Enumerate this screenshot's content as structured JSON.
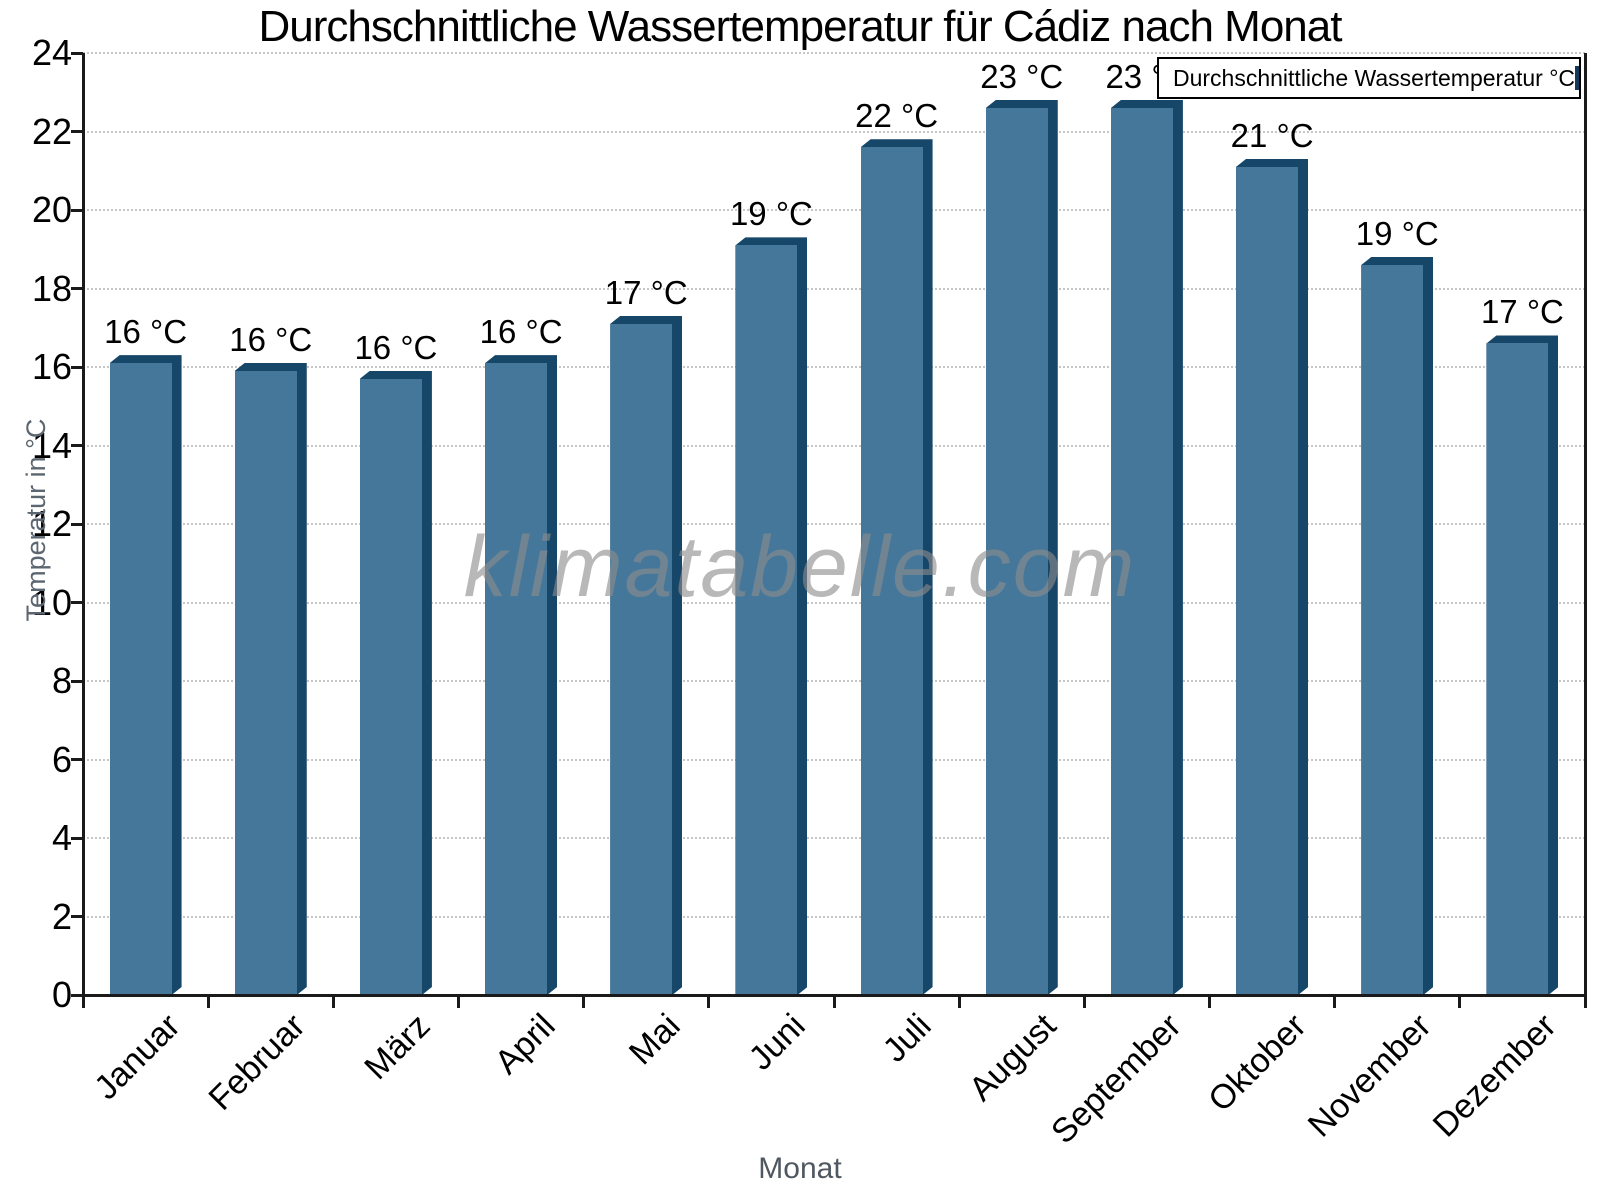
{
  "watermark": "klimatabelle.com",
  "chart_data": {
    "type": "bar",
    "title": "Durchschnittliche Wassertemperatur für Cádiz nach Monat",
    "xlabel": "Monat",
    "ylabel": "Temperatur in °C",
    "categories": [
      "Januar",
      "Februar",
      "März",
      "April",
      "Mai",
      "Juni",
      "Juli",
      "August",
      "September",
      "Oktober",
      "November",
      "Dezember"
    ],
    "values": [
      16.1,
      15.9,
      15.7,
      16.1,
      17.1,
      19.1,
      21.6,
      22.6,
      22.6,
      21.1,
      18.6,
      16.6
    ],
    "bar_labels": [
      "16 °C",
      "16 °C",
      "16 °C",
      "16 °C",
      "17 °C",
      "19 °C",
      "22 °C",
      "23 °C",
      "23 °C",
      "21 °C",
      "19 °C",
      "17 °C"
    ],
    "ylim": [
      0,
      24
    ],
    "ytick_step": 2,
    "grid": true,
    "legend": {
      "label": "Durchschnittliche Wassertemperatur °C",
      "position": "top-right"
    },
    "colors": {
      "bar_face": "#45779B",
      "bar_edge": "#164668",
      "grid": "#c6c6c6",
      "axis": "#1a1a1a",
      "axis_title": "#5c6670",
      "watermark": "#8c8c8c"
    }
  }
}
